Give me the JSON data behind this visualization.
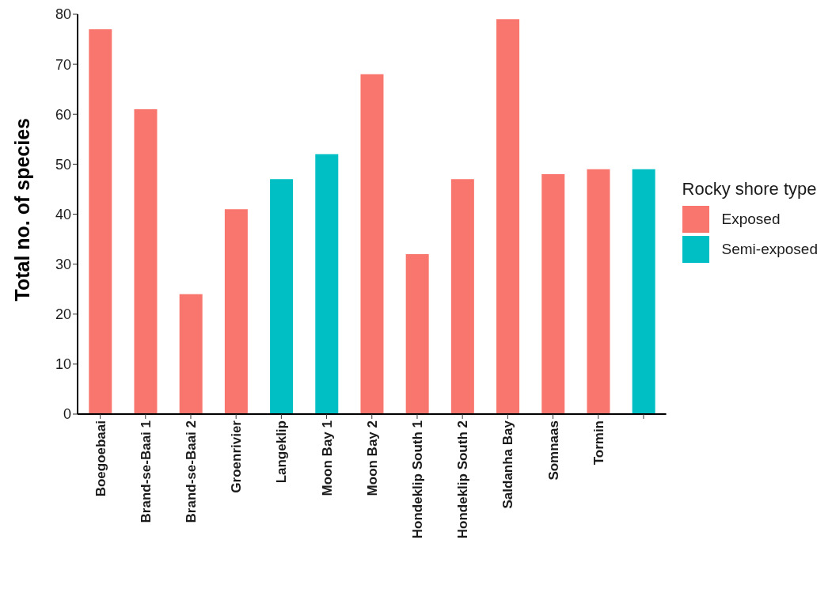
{
  "chart_data": {
    "type": "bar",
    "ylabel": "Total no. of species",
    "legend_title": "Rocky shore type",
    "legend": "right",
    "grid": false,
    "stacked": true,
    "categories": [
      "Boegoebaai",
      "Brand-se-Baai 1",
      "Brand-se-Baai 2",
      "Groenrivier",
      "Langeklip",
      "Moon Bay 1",
      "Moon Bay 2",
      "Hondeklip South 1",
      "Hondeklip South 2",
      "Saldanha Bay",
      "Somnaas",
      "Tormin",
      null
    ],
    "series": [
      {
        "name": "Exposed",
        "color": "#f8766d",
        "values": [
          77,
          61,
          24,
          41,
          null,
          null,
          68,
          32,
          47,
          79,
          48,
          49,
          null
        ]
      },
      {
        "name": "Semi-exposed",
        "color": "#00bfc4",
        "values": [
          null,
          null,
          null,
          null,
          47,
          52,
          null,
          null,
          null,
          null,
          null,
          null,
          49
        ]
      }
    ],
    "ylim": [
      0,
      80
    ],
    "yticks": [
      0,
      10,
      20,
      30,
      40,
      50,
      60,
      70,
      80
    ]
  }
}
